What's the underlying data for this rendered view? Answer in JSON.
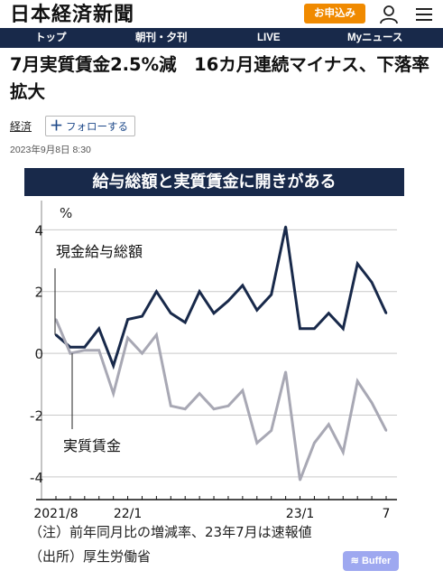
{
  "header": {
    "logo": "日本経済新聞",
    "signup_label": "お申込み",
    "nav": [
      "トップ",
      "朝刊・夕刊",
      "LIVE",
      "Myニュース"
    ]
  },
  "article": {
    "headline": "7月実質賃金2.5%減　16カ月連続マイナス、下落率拡大",
    "category": "経済",
    "follow_label": "フォローする",
    "datetime": "2023年9月8日 8:30"
  },
  "chart_data": {
    "type": "line",
    "title": "給与総額と実質賃金に開きがある",
    "ylabel": "%",
    "ylim": [
      -4.5,
      4.8
    ],
    "yticks": [
      -4,
      -2,
      0,
      2,
      4
    ],
    "x": [
      "2021/8",
      "2021/9",
      "2021/10",
      "2021/11",
      "2021/12",
      "2022/1",
      "2022/2",
      "2022/3",
      "2022/4",
      "2022/5",
      "2022/6",
      "2022/7",
      "2022/8",
      "2022/9",
      "2022/10",
      "2022/11",
      "2022/12",
      "2023/1",
      "2023/2",
      "2023/3",
      "2023/4",
      "2023/5",
      "2023/6",
      "2023/7"
    ],
    "xtick_labels": [
      {
        "index": 0,
        "label": "2021/8"
      },
      {
        "index": 5,
        "label": "22/1"
      },
      {
        "index": 17,
        "label": "23/1"
      },
      {
        "index": 23,
        "label": "7"
      }
    ],
    "series": [
      {
        "name": "現金給与総額",
        "color": "#18294a",
        "values": [
          0.6,
          0.2,
          0.2,
          0.8,
          -0.4,
          1.1,
          1.2,
          2.0,
          1.3,
          1.0,
          2.0,
          1.3,
          1.7,
          2.2,
          1.4,
          1.9,
          4.1,
          0.8,
          0.8,
          1.3,
          0.8,
          2.9,
          2.3,
          1.3
        ]
      },
      {
        "name": "実質賃金",
        "color": "#a8a8b4",
        "values": [
          1.1,
          0.0,
          0.1,
          0.1,
          -1.3,
          0.5,
          0.0,
          0.6,
          -1.7,
          -1.8,
          -1.3,
          -1.8,
          -1.7,
          -1.2,
          -2.9,
          -2.5,
          -0.6,
          -4.1,
          -2.9,
          -2.3,
          -3.2,
          -0.9,
          -1.6,
          -2.5
        ]
      }
    ]
  },
  "notes": {
    "note": "（注）前年同月比の増減率、23年7月は速報値",
    "source": "（出所）厚生労働省"
  },
  "buffer_label": "Buffer",
  "colors": {
    "navy": "#18294a",
    "orange": "#f08a00",
    "gray_series": "#a8a8b4"
  }
}
